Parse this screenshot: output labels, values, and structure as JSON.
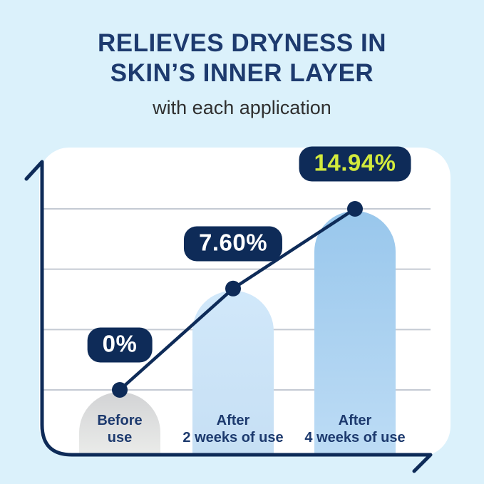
{
  "header": {
    "title_line1": "RELIEVES DRYNESS IN",
    "title_line2": "SKIN’S INNER LAYER",
    "subtitle": "with each application"
  },
  "chart_data": {
    "type": "bar",
    "subtype": "rounded-top bars with overlaid line and point markers",
    "title": "RELIEVES DRYNESS IN SKIN’S INNER LAYER",
    "subtitle": "with each application",
    "categories": [
      "Before use",
      "After 2 weeks of use",
      "After 4 weeks of use"
    ],
    "values": [
      0,
      7.6,
      14.94
    ],
    "value_labels": [
      "0%",
      "7.60%",
      "14.94%"
    ],
    "unit": "percent",
    "xlabel": "",
    "ylabel": "",
    "ylim": [
      0,
      16
    ],
    "grid": "horizontal",
    "legend": "none",
    "points": [
      {
        "category_line1": "Before",
        "category_line2": "use",
        "value": 0,
        "label": "0%",
        "label_color": "#ffffff",
        "bar_top": "#d2d3d5",
        "bar_bottom": "#ebecea"
      },
      {
        "category_line1": "After",
        "category_line2": "2 weeks of use",
        "value": 7.6,
        "label": "7.60%",
        "label_color": "#ffffff",
        "bar_top": "#d1e8fa",
        "bar_bottom": "#c6dff4"
      },
      {
        "category_line1": "After",
        "category_line2": "4 weeks of use",
        "value": 14.94,
        "label": "14.94%",
        "label_color": "#d3ea3c",
        "bar_top": "#99c7ec",
        "bar_bottom": "#bddcf5"
      }
    ]
  },
  "colors": {
    "background": "#dbf1fb",
    "panel": "#ffffff",
    "navy": "#0e2b58",
    "navy_text": "#1d3a6e",
    "lime": "#d3ea3c",
    "gridline": "#c4cad3",
    "subtitle_text": "#303030"
  }
}
